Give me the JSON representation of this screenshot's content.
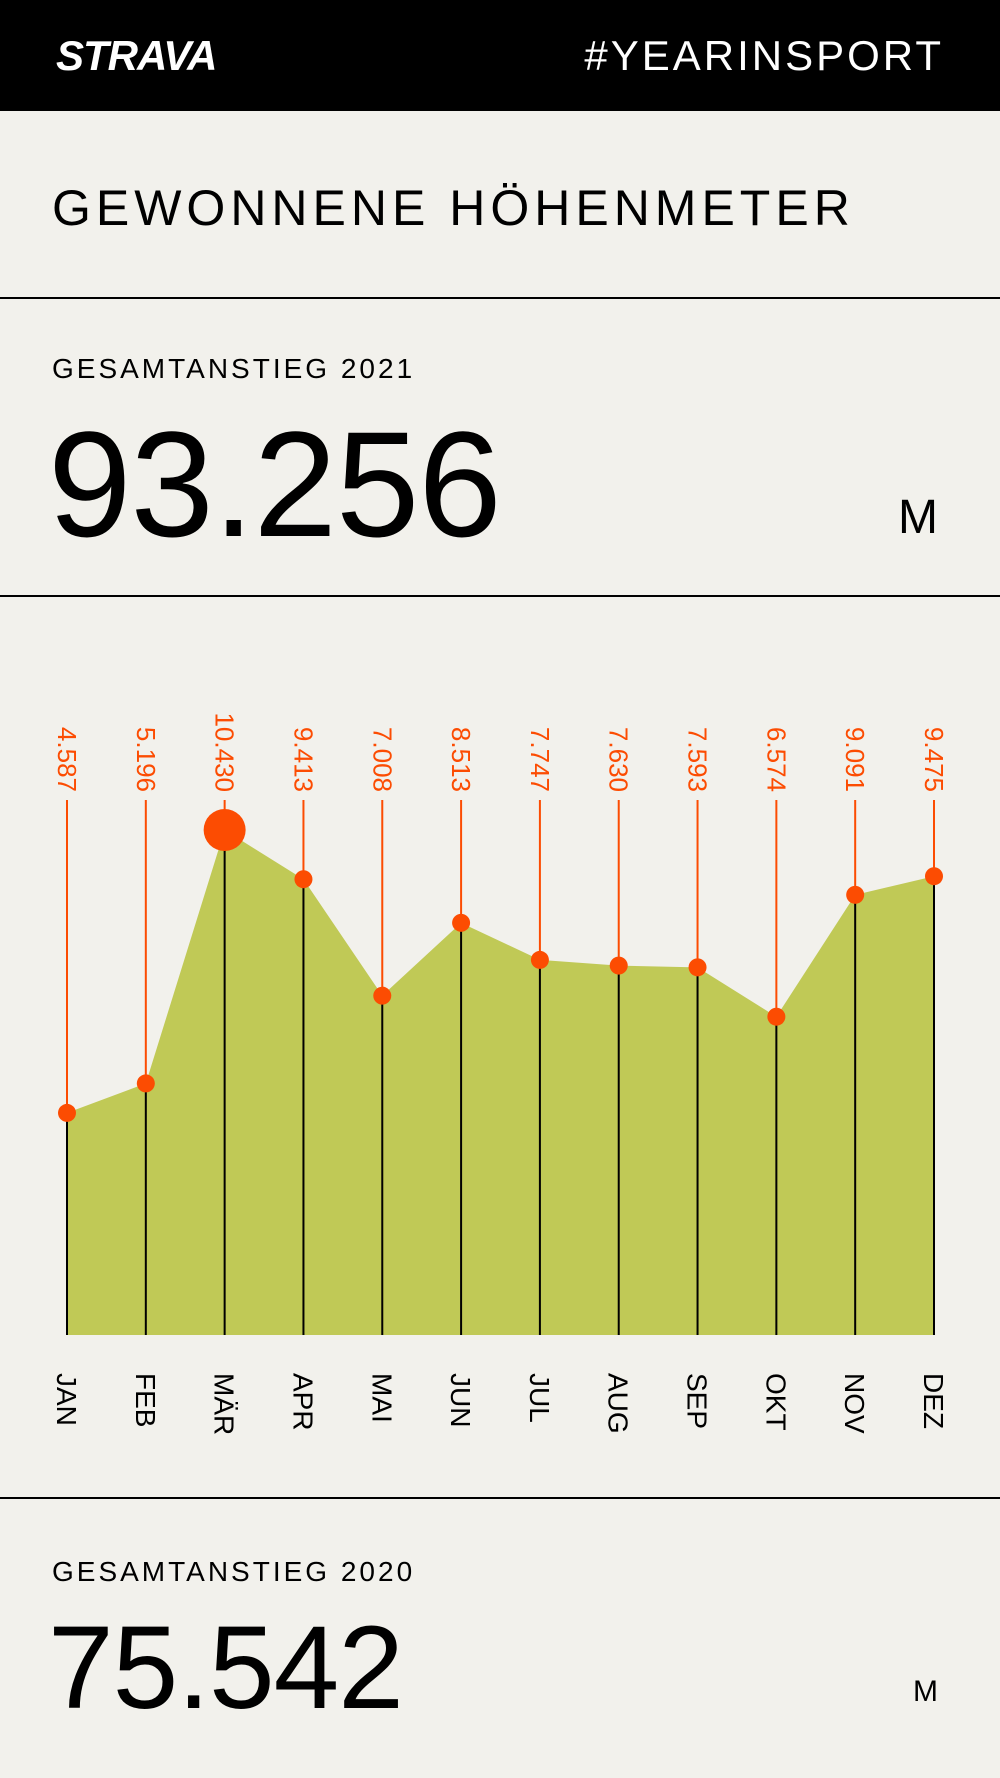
{
  "header": {
    "logo": "STRAVA",
    "hashtag": "#YEARINSPORT"
  },
  "page_title": "GEWONNENE HÖHENMETER",
  "stat_2021": {
    "label": "GESAMTANSTIEG 2021",
    "value": "93.256",
    "unit": "M"
  },
  "stat_2020": {
    "label": "GESAMTANSTIEG 2020",
    "value": "75.542",
    "unit": "M"
  },
  "colors": {
    "area": "#c0c956",
    "accent": "#fc4c02",
    "background": "#f2f1ec"
  },
  "chart_data": {
    "type": "area",
    "categories": [
      "JAN",
      "FEB",
      "MÄR",
      "APR",
      "MAI",
      "JUN",
      "JUL",
      "AUG",
      "SEP",
      "OKT",
      "NOV",
      "DEZ"
    ],
    "values": [
      4587,
      5196,
      10430,
      9413,
      7008,
      8513,
      7747,
      7630,
      7593,
      6574,
      9091,
      9475
    ],
    "value_labels": [
      "4.587",
      "5.196",
      "10.430",
      "9.413",
      "7.008",
      "8.513",
      "7.747",
      "7.630",
      "7.593",
      "6.574",
      "9.091",
      "9.475"
    ],
    "highlight_index": 2,
    "ylim": [
      0,
      10430
    ]
  }
}
